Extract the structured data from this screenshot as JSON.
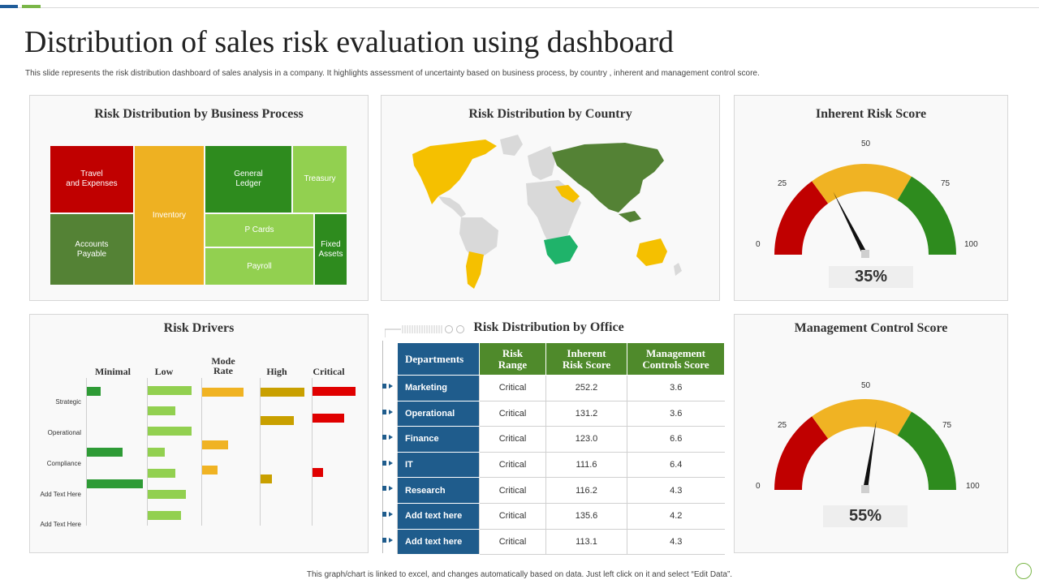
{
  "page": {
    "title": "Distribution of sales risk evaluation using dashboard",
    "subtitle": "This slide represents the risk distribution dashboard of sales analysis in a company. It highlights  assessment of uncertainty based on business process, by country , inherent and management  control score.",
    "footer": "This graph/chart is linked to excel, and changes automatically based on data. Just left click on it and select “Edit Data”."
  },
  "colors": {
    "red": "#c00000",
    "dark_green": "#548235",
    "green": "#2e8b1e",
    "light_green": "#92d050",
    "yellow": "#f0b323",
    "navy": "#1f5c8c",
    "header_green": "#4f8a2b"
  },
  "business_process": {
    "title": "Risk Distribution by Business  Process",
    "cells": [
      {
        "label": "Travel\nand Expenses",
        "color": "#c00000"
      },
      {
        "label": "Accounts\nPayable",
        "color": "#548235"
      },
      {
        "label": "Inventory",
        "color": "#eeb122"
      },
      {
        "label": "General\nLedger",
        "color": "#2e8b1e"
      },
      {
        "label": "Treasury",
        "color": "#92d050"
      },
      {
        "label": "P Cards",
        "color": "#92d050"
      },
      {
        "label": "Payroll",
        "color": "#92d050"
      },
      {
        "label": "Fixed\nAssets",
        "color": "#2e8b1e"
      }
    ]
  },
  "country": {
    "title": "Risk Distribution by Country"
  },
  "inherent_gauge": {
    "title": "Inherent Risk Score",
    "ticks": [
      "0",
      "25",
      "50",
      "75",
      "100"
    ],
    "value": 35,
    "value_label": "35%"
  },
  "management_gauge": {
    "title": "Management Control Score",
    "ticks": [
      "0",
      "25",
      "50",
      "75",
      "100"
    ],
    "value": 55,
    "value_label": "55%"
  },
  "risk_drivers": {
    "title": "Risk Drivers",
    "columns": [
      "Minimal",
      "Low",
      "Mode\nRate",
      "High",
      "Critical"
    ],
    "rows": [
      "Strategic",
      "Operational",
      "Compliance",
      "Add Text Here",
      "Add Text Here"
    ]
  },
  "office": {
    "title": "Risk Distribution by Office",
    "headers": [
      "Departments",
      "Risk\nRange",
      "Inherent\nRisk Score",
      "Management\nControls Score"
    ],
    "rows": [
      {
        "department": "Marketing",
        "range": "Critical",
        "inherent": "252.2",
        "control": "3.6"
      },
      {
        "department": "Operational",
        "range": "Critical",
        "inherent": "131.2",
        "control": "3.6"
      },
      {
        "department": "Finance",
        "range": "Critical",
        "inherent": "123.0",
        "control": "6.6"
      },
      {
        "department": "IT",
        "range": "Critical",
        "inherent": "111.6",
        "control": "6.4"
      },
      {
        "department": "Research",
        "range": "Critical",
        "inherent": "116.2",
        "control": "4.3"
      },
      {
        "department": "Add text here",
        "range": "Critical",
        "inherent": "135.6",
        "control": "4.2"
      },
      {
        "department": "Add text here",
        "range": "Critical",
        "inherent": "113.1",
        "control": "4.3"
      }
    ]
  }
}
